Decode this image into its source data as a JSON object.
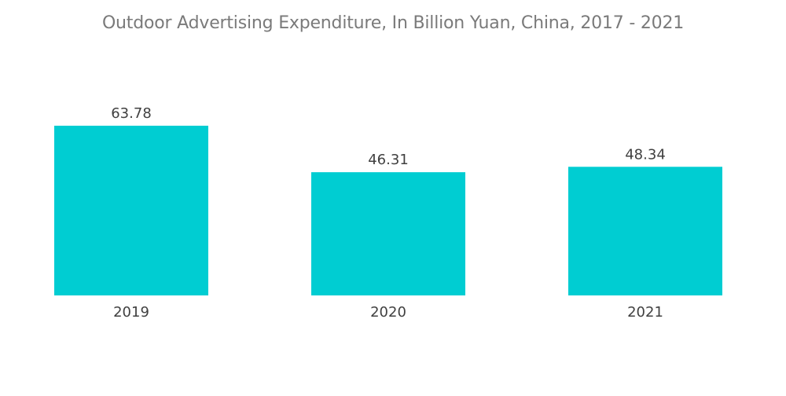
{
  "chart_data": {
    "type": "bar",
    "title": "Outdoor Advertising Expenditure, In Billion Yuan, China, 2017 - 2021",
    "categories": [
      "2019",
      "2020",
      "2021"
    ],
    "values": [
      63.78,
      46.31,
      48.34
    ],
    "value_labels": [
      "63.78",
      "46.31",
      "48.34"
    ],
    "xlabel": "",
    "ylabel": "",
    "ylim": [
      0,
      63.78
    ],
    "grid": false,
    "legend": "none",
    "bar_color": "#00cdd2"
  }
}
